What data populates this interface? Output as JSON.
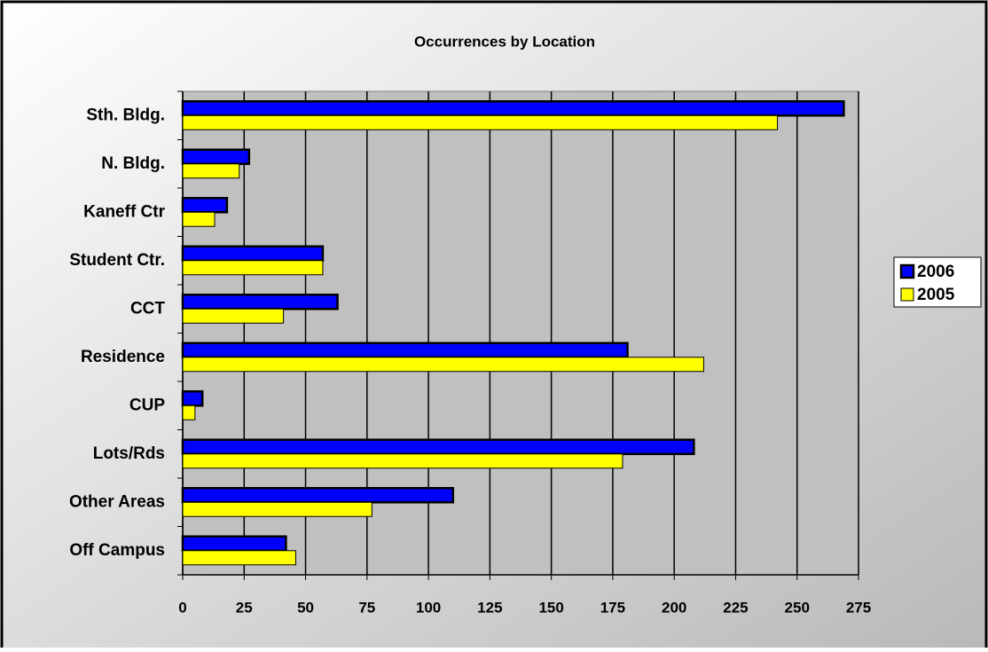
{
  "chart_data": {
    "type": "hbar",
    "title": "Occurrences by Location",
    "categories": [
      "Sth. Bldg.",
      "N. Bldg.",
      "Kaneff Ctr",
      "Student Ctr.",
      "CCT",
      "Residence",
      "CUP",
      "Lots/Rds",
      "Other Areas",
      "Off Campus"
    ],
    "series": [
      {
        "name": "2006",
        "color": "#0000ff",
        "values": [
          269,
          27,
          18,
          57,
          63,
          181,
          8,
          208,
          110,
          42
        ]
      },
      {
        "name": "2005",
        "color": "#ffff00",
        "values": [
          242,
          23,
          13,
          57,
          41,
          212,
          5,
          179,
          77,
          46
        ]
      }
    ],
    "xlim": [
      0,
      275
    ],
    "xticks": [
      0,
      25,
      50,
      75,
      100,
      125,
      150,
      175,
      200,
      225,
      250,
      275
    ],
    "grid": true,
    "legend": "right"
  }
}
